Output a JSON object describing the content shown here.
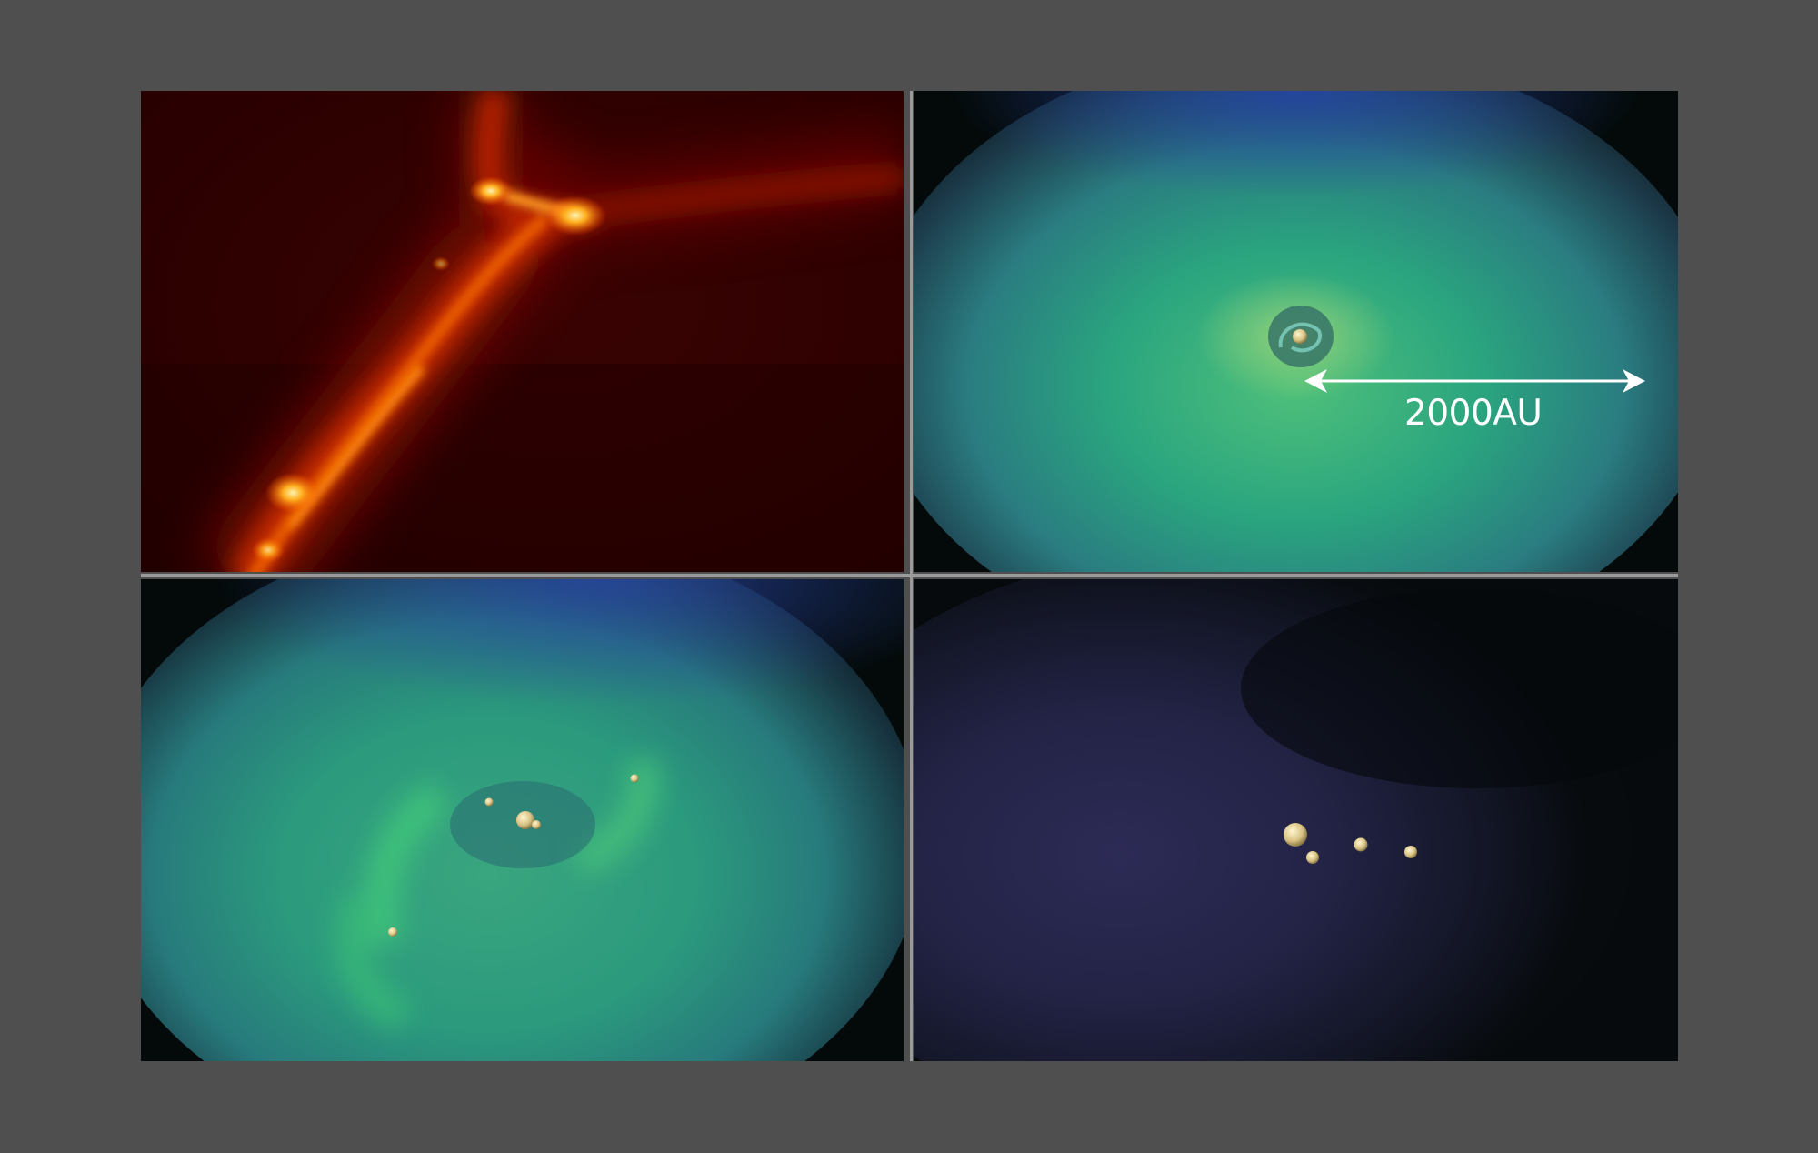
{
  "scale_bar": {
    "label": "2000AU"
  },
  "panels": [
    {
      "id": "filament",
      "palette": [
        "#3c0000",
        "#a01800",
        "#ff7a00",
        "#ffe080"
      ],
      "bright_spots": 3
    },
    {
      "id": "cloud-single-core",
      "palette": [
        "#071010",
        "#1f3f86",
        "#27a07e",
        "#55d07a"
      ],
      "stars": 1
    },
    {
      "id": "cloud-fragmenting",
      "palette": [
        "#071010",
        "#243c88",
        "#27987c",
        "#3fc078"
      ],
      "stars": 5
    },
    {
      "id": "dispersed-cluster",
      "palette": [
        "#05090c",
        "#2c2b55",
        "#14162a"
      ],
      "stars": 4
    }
  ],
  "colors": {
    "background": "#4f4f4f",
    "star": "#e8d9a0",
    "arrow": "#ffffff"
  }
}
